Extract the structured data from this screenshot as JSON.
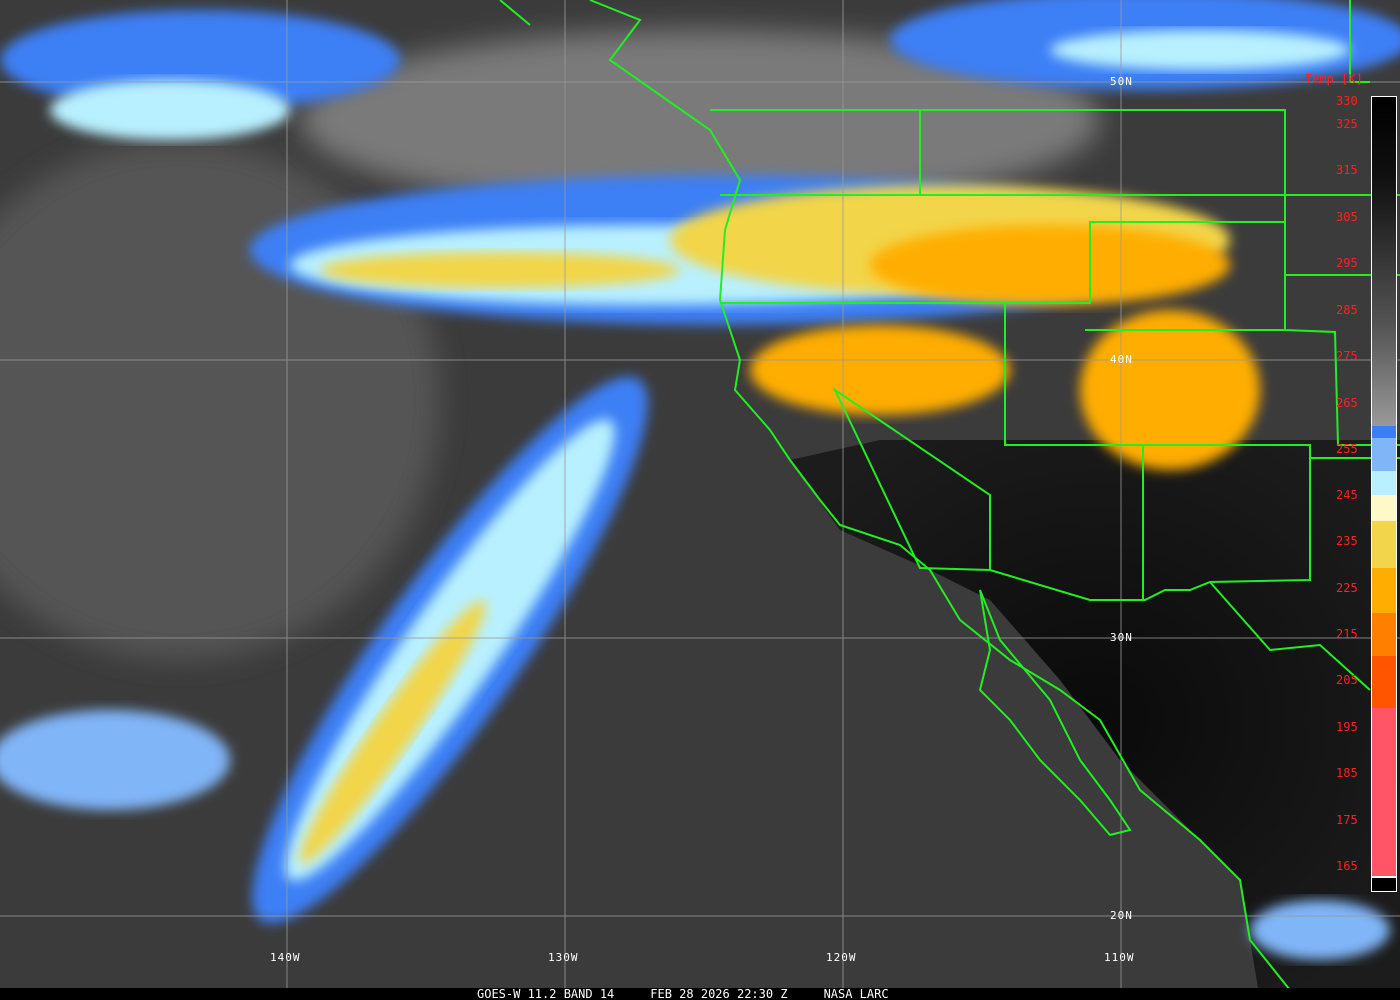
{
  "caption": {
    "satellite": "GOES-W 11.2 BAND 14",
    "datetime": "FEB 28 2026 22:30 Z",
    "source": "NASA LARC"
  },
  "latitude_labels": [
    "50N",
    "40N",
    "30N",
    "20N"
  ],
  "longitude_labels": [
    "140W",
    "130W",
    "120W",
    "110W"
  ],
  "colorbar": {
    "title": "Temp [K]",
    "labels": [
      "330",
      "325",
      "315",
      "305",
      "295",
      "285",
      "275",
      "265",
      "255",
      "245",
      "235",
      "225",
      "215",
      "205",
      "195",
      "185",
      "175",
      "165"
    ],
    "segments": [
      {
        "from_k": 330,
        "to_k": 260,
        "color": "grayscale black-to-gray"
      },
      {
        "color": "#3c7ff5"
      },
      {
        "color": "#80b5f8"
      },
      {
        "color": "#b8f0ff"
      },
      {
        "color": "#fff8c8"
      },
      {
        "color": "#f2d54a"
      },
      {
        "color": "#ffad00"
      },
      {
        "color": "#ff8000"
      },
      {
        "color": "#ff5500"
      },
      {
        "color": "#ff5566"
      }
    ]
  },
  "colors": {
    "borders": "#22ee22",
    "grid": "#9a9a9a",
    "label_red": "#ff2020"
  }
}
